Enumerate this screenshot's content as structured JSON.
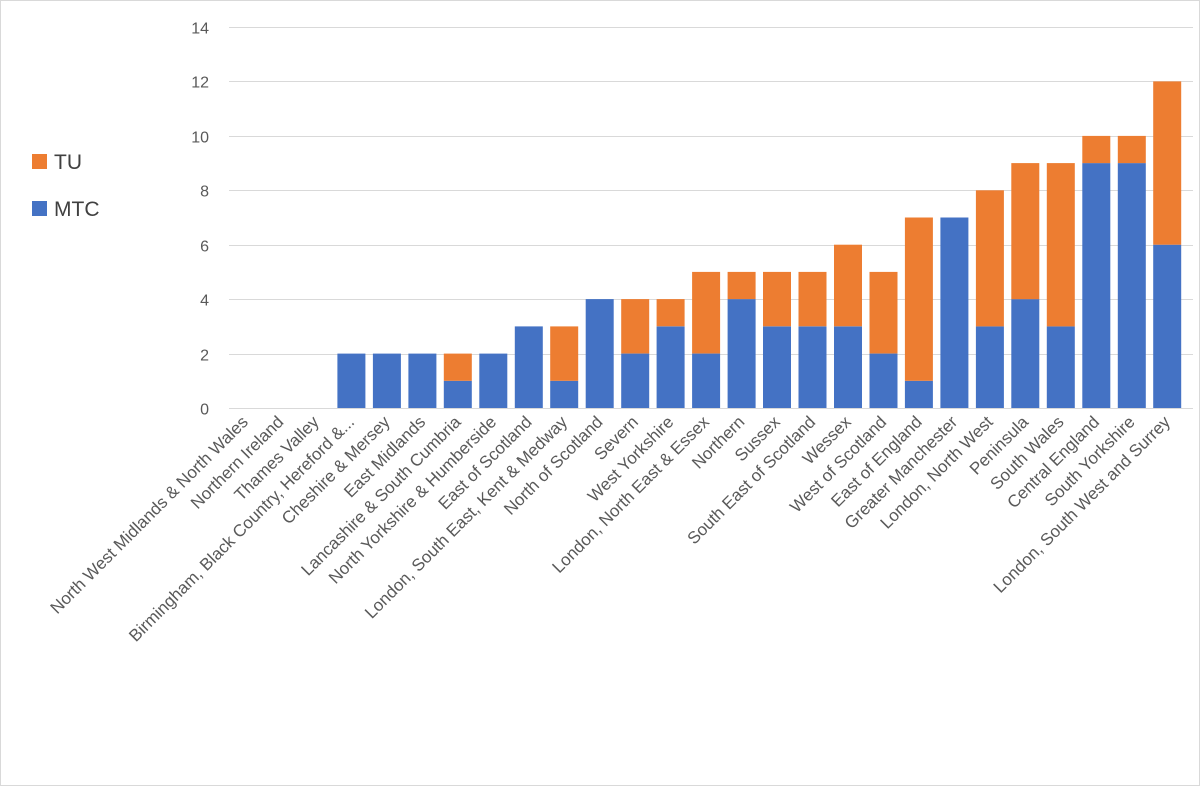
{
  "chart_data": {
    "type": "bar",
    "stacked": true,
    "title": "",
    "xlabel": "",
    "ylabel": "",
    "ylim": [
      0,
      14
    ],
    "yticks": [
      0,
      2,
      4,
      6,
      8,
      10,
      12,
      14
    ],
    "grid": true,
    "legend_position": "left",
    "categories": [
      "North West Midlands & North Wales",
      "Northern Ireland",
      "Thames Valley",
      "Birmingham, Black Country, Hereford &...",
      "Cheshire & Mersey",
      "East Midlands",
      "Lancashire & South Cumbria",
      "North Yorkshire & Humberside",
      "East of Scotland",
      "London, South East, Kent & Medway",
      "North of Scotland",
      "Severn",
      "West Yorkshire",
      "London, North East & Essex",
      "Northern",
      "Sussex",
      "South East of Scotland",
      "Wessex",
      "West of Scotland",
      "East of England",
      "Greater Manchester",
      "London, North West",
      "Peninsula",
      "South Wales",
      "Central England",
      "South Yorkshire",
      "London, South West and Surrey"
    ],
    "series": [
      {
        "name": "MTC",
        "color": "#4472c4",
        "values": [
          0,
          0,
          0,
          2,
          2,
          2,
          1,
          2,
          3,
          1,
          4,
          2,
          3,
          2,
          4,
          3,
          3,
          3,
          2,
          1,
          7,
          3,
          4,
          3,
          9,
          9,
          6
        ]
      },
      {
        "name": "TU",
        "color": "#ed7d31",
        "values": [
          0,
          0,
          0,
          0,
          0,
          0,
          1,
          0,
          0,
          2,
          0,
          2,
          1,
          3,
          1,
          2,
          2,
          3,
          3,
          6,
          0,
          5,
          5,
          6,
          1,
          1,
          6
        ]
      }
    ],
    "legend": [
      {
        "label": "TU",
        "color": "#ed7d31"
      },
      {
        "label": "MTC",
        "color": "#4472c4"
      }
    ]
  }
}
